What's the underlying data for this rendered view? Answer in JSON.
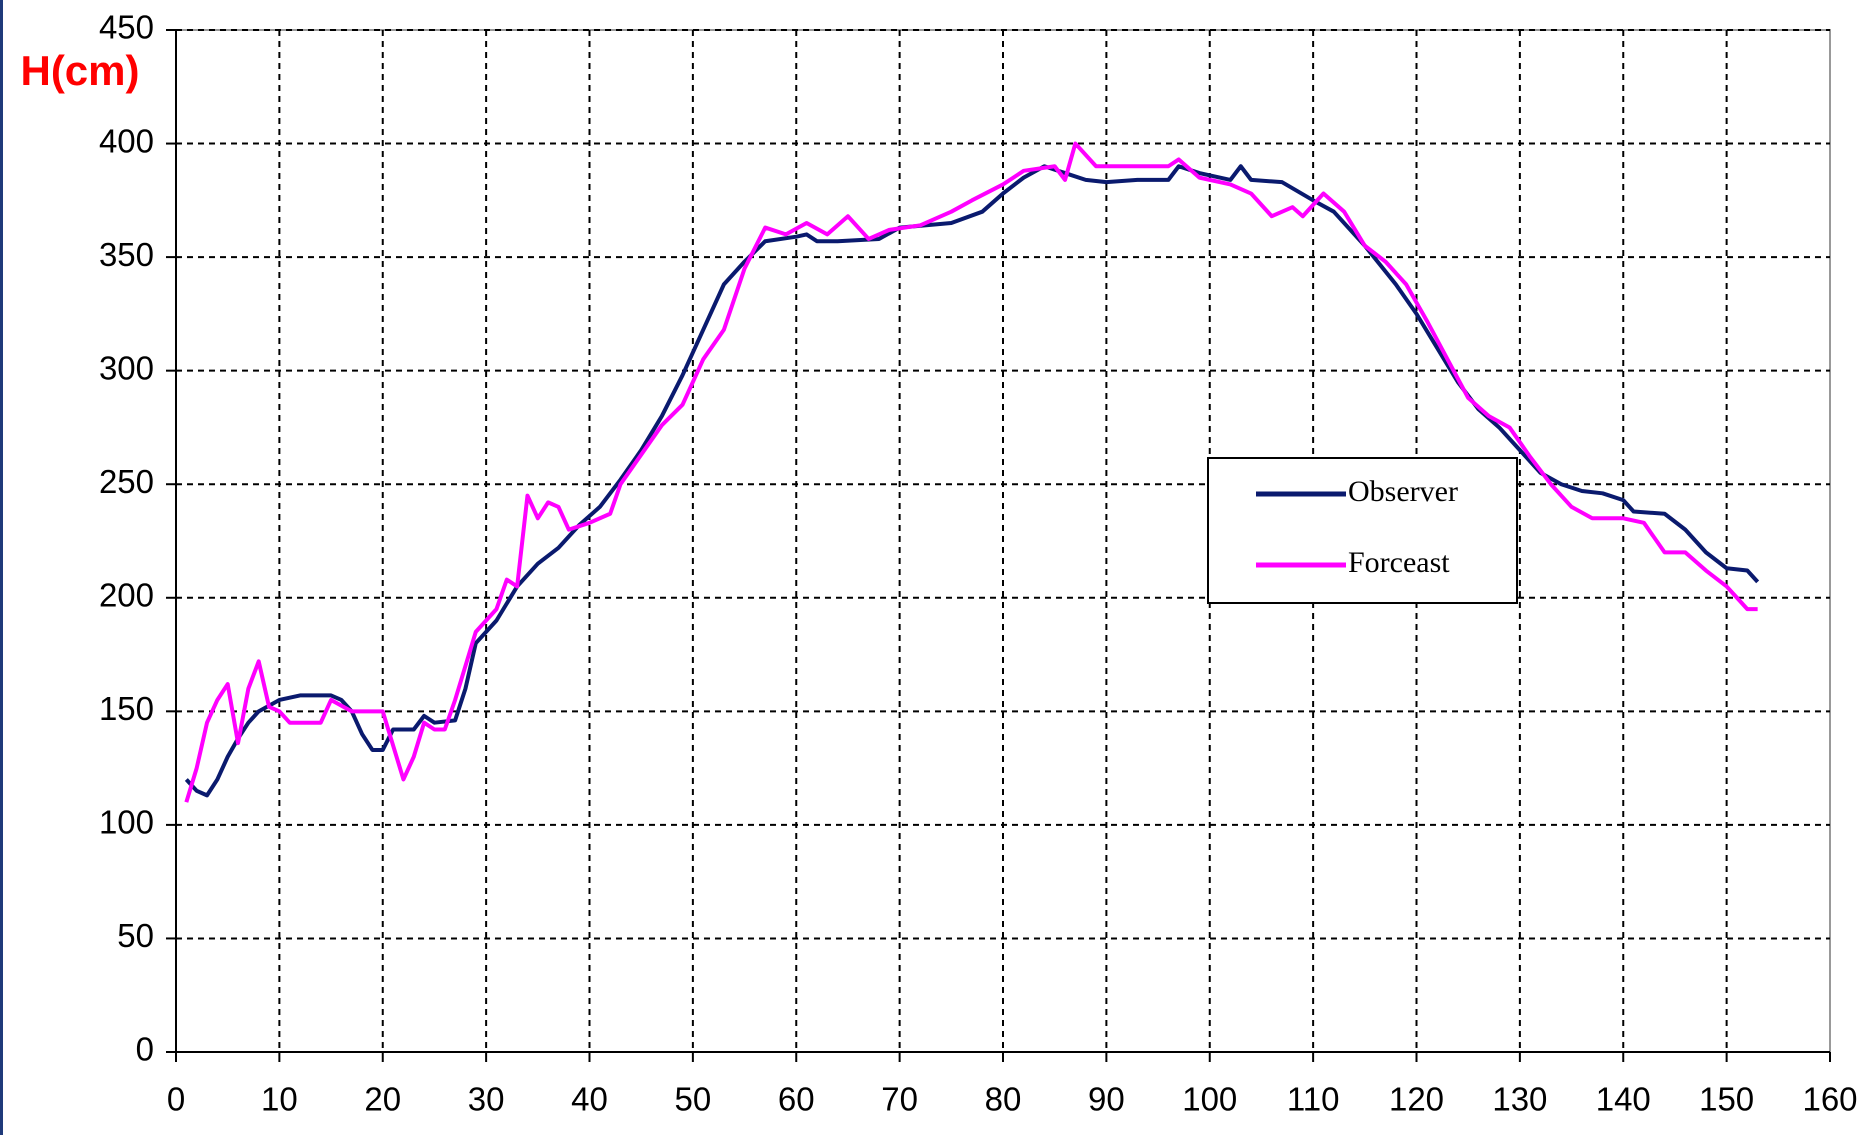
{
  "chart_data": {
    "type": "line",
    "y_label": "H(cm)",
    "xlim": [
      0,
      160
    ],
    "xticks": [
      0,
      10,
      20,
      30,
      40,
      50,
      60,
      70,
      80,
      90,
      100,
      110,
      120,
      130,
      140,
      150,
      160
    ],
    "ylim": [
      0,
      450
    ],
    "yticks": [
      0,
      50,
      100,
      150,
      200,
      250,
      300,
      350,
      400,
      450
    ],
    "grid": true,
    "legend": "right",
    "series": [
      {
        "name": "Observer",
        "color": "#0a1a6e",
        "x": [
          1,
          2,
          3,
          4,
          5,
          6,
          7,
          8,
          10,
          12,
          15,
          16,
          17,
          18,
          19,
          20,
          21,
          23,
          24,
          25,
          27,
          28,
          29,
          31,
          33,
          35,
          37,
          39,
          41,
          43,
          45,
          47,
          49,
          51,
          53,
          55,
          57,
          60,
          61,
          62,
          64,
          68,
          70,
          75,
          78,
          80,
          82,
          84,
          86,
          88,
          90,
          93,
          96,
          97,
          99,
          102,
          103,
          104,
          107,
          110,
          112,
          115,
          118,
          120,
          122,
          124,
          126,
          128,
          130,
          132,
          134,
          136,
          138,
          140,
          141,
          144,
          146,
          148,
          150,
          152,
          153
        ],
        "values": [
          120,
          115,
          113,
          120,
          130,
          138,
          145,
          150,
          155,
          157,
          157,
          155,
          150,
          140,
          133,
          133,
          142,
          142,
          148,
          145,
          146,
          160,
          180,
          190,
          205,
          215,
          222,
          232,
          240,
          252,
          265,
          280,
          298,
          318,
          338,
          348,
          357,
          359,
          360,
          357,
          357,
          358,
          363,
          365,
          370,
          378,
          385,
          390,
          387,
          384,
          383,
          384,
          384,
          390,
          387,
          384,
          390,
          384,
          383,
          375,
          370,
          355,
          338,
          325,
          310,
          295,
          283,
          275,
          265,
          255,
          250,
          247,
          246,
          243,
          238,
          237,
          230,
          220,
          213,
          212,
          207
        ]
      },
      {
        "name": "Forceast",
        "color": "#ff00ff",
        "x": [
          1,
          2,
          3,
          4,
          5,
          6,
          7,
          8,
          9,
          10,
          11,
          14,
          15,
          17,
          20,
          21,
          22,
          23,
          24,
          25,
          26,
          27,
          28,
          29,
          31,
          32,
          33,
          34,
          35,
          36,
          37,
          38,
          40,
          42,
          43,
          45,
          47,
          49,
          51,
          53,
          55,
          57,
          59,
          61,
          63,
          65,
          67,
          69,
          72,
          75,
          77,
          80,
          82,
          85,
          86,
          87,
          89,
          93,
          96,
          97,
          99,
          102,
          104,
          106,
          108,
          109,
          111,
          113,
          115,
          117,
          119,
          121,
          123,
          125,
          127,
          129,
          131,
          133,
          135,
          137,
          140,
          142,
          144,
          146,
          148,
          150,
          151,
          152,
          153
        ],
        "values": [
          110,
          125,
          145,
          155,
          162,
          136,
          160,
          172,
          152,
          150,
          145,
          145,
          155,
          150,
          150,
          135,
          120,
          130,
          145,
          142,
          142,
          155,
          170,
          185,
          195,
          208,
          205,
          245,
          235,
          242,
          240,
          230,
          233,
          237,
          250,
          263,
          276,
          285,
          305,
          318,
          345,
          363,
          360,
          365,
          360,
          368,
          358,
          362,
          364,
          370,
          375,
          382,
          388,
          390,
          384,
          400,
          390,
          390,
          390,
          393,
          385,
          382,
          378,
          368,
          372,
          368,
          378,
          370,
          355,
          348,
          338,
          322,
          305,
          288,
          280,
          275,
          262,
          250,
          240,
          235,
          235,
          233,
          220,
          220,
          212,
          205,
          200,
          195,
          195
        ]
      }
    ]
  }
}
